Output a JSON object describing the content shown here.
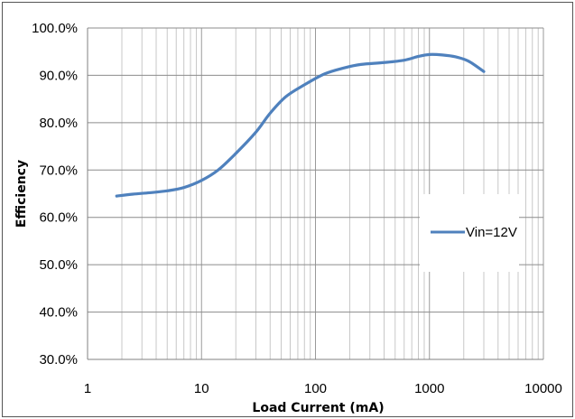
{
  "chart_data": {
    "type": "line",
    "title": "",
    "xlabel": "Load Current (mA)",
    "ylabel": "Efficiency",
    "x_scale": "log",
    "xlim": [
      1,
      10000
    ],
    "ylim": [
      30,
      100
    ],
    "x_ticks": [
      "1",
      "10",
      "100",
      "1000",
      "10000"
    ],
    "y_ticks": [
      "30.0%",
      "40.0%",
      "50.0%",
      "60.0%",
      "70.0%",
      "80.0%",
      "90.0%",
      "100.0%"
    ],
    "grid": true,
    "legend_position": "right",
    "series": [
      {
        "name": "Vin=12V",
        "color": "#4f81bd",
        "x": [
          1.8,
          2.5,
          3.5,
          5,
          7,
          10,
          14,
          20,
          30,
          40,
          55,
          80,
          120,
          180,
          250,
          400,
          600,
          800,
          1000,
          1300,
          1700,
          2200,
          3000
        ],
        "y": [
          64.5,
          64.9,
          65.2,
          65.6,
          66.3,
          67.8,
          70.0,
          73.5,
          78.0,
          82.0,
          85.5,
          88.0,
          90.3,
          91.6,
          92.3,
          92.7,
          93.2,
          94.0,
          94.4,
          94.3,
          93.9,
          93.0,
          90.8
        ]
      }
    ]
  }
}
